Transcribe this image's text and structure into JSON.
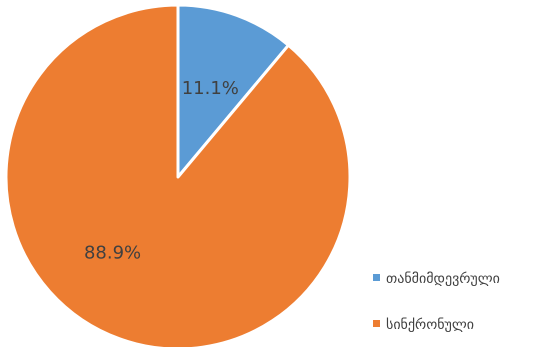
{
  "chart_data": {
    "type": "pie",
    "categories": [
      "თანმიმდევრული",
      "სინქრონული"
    ],
    "values": [
      11.1,
      88.9
    ],
    "data_labels": [
      "11.1%",
      "88.9%"
    ],
    "colors": [
      "#5B9BD5",
      "#ED7D31"
    ],
    "title": "",
    "legend_position": "right",
    "start_angle_deg": 0,
    "direction": "clockwise"
  }
}
